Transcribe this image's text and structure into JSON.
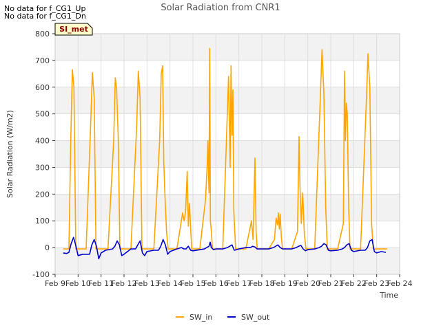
{
  "notes": [
    "No data for f_CG1_Up",
    "No data for f_CG1_Dn"
  ],
  "badge": "SI_met",
  "chart_data": {
    "type": "line",
    "title": "Solar Radiation from CNR1",
    "xlabel": "Time",
    "ylabel": "Solar Radiation (W/m2)",
    "ylim": [
      -100,
      800
    ],
    "yticks": [
      -100,
      0,
      100,
      200,
      300,
      400,
      500,
      600,
      700,
      800
    ],
    "xlim": [
      9,
      24
    ],
    "xticks": [
      {
        "v": 9,
        "label": "Feb 9"
      },
      {
        "v": 10,
        "label": "Feb 10"
      },
      {
        "v": 11,
        "label": "Feb 11"
      },
      {
        "v": 12,
        "label": "Feb 12"
      },
      {
        "v": 13,
        "label": "Feb 13"
      },
      {
        "v": 14,
        "label": "Feb 14"
      },
      {
        "v": 15,
        "label": "Feb 15"
      },
      {
        "v": 16,
        "label": "Feb 16"
      },
      {
        "v": 17,
        "label": "Feb 17"
      },
      {
        "v": 18,
        "label": "Feb 18"
      },
      {
        "v": 19,
        "label": "Feb 19"
      },
      {
        "v": 20,
        "label": "Feb 20"
      },
      {
        "v": 21,
        "label": "Feb 21"
      },
      {
        "v": 22,
        "label": "Feb 22"
      },
      {
        "v": 23,
        "label": "Feb 23"
      },
      {
        "v": 24,
        "label": "Feb 24"
      }
    ],
    "grid": true,
    "legend_position": "bottom-center",
    "series": [
      {
        "name": "SW_in",
        "color": "#FFA500",
        "x": [
          9.35,
          9.6,
          9.68,
          9.75,
          9.82,
          9.9,
          10.05,
          10.35,
          10.55,
          10.62,
          10.7,
          10.78,
          10.85,
          11.05,
          11.3,
          11.55,
          11.62,
          11.68,
          11.75,
          11.82,
          11.88,
          12.05,
          12.3,
          12.55,
          12.62,
          12.7,
          12.78,
          12.85,
          13.05,
          13.3,
          13.55,
          13.62,
          13.68,
          13.73,
          13.78,
          13.85,
          13.92,
          14.05,
          14.3,
          14.55,
          14.62,
          14.68,
          14.75,
          14.8,
          14.85,
          14.9,
          14.95,
          15.05,
          15.3,
          15.55,
          15.62,
          15.65,
          15.7,
          15.73,
          15.76,
          15.8,
          15.85,
          15.9,
          16.05,
          16.3,
          16.55,
          16.62,
          16.66,
          16.7,
          16.74,
          16.78,
          16.82,
          16.86,
          16.9,
          17.05,
          17.3,
          17.55,
          17.62,
          17.7,
          17.75,
          17.8,
          17.85,
          17.9,
          18.05,
          18.3,
          18.55,
          18.62,
          18.68,
          18.72,
          18.76,
          18.8,
          18.85,
          18.9,
          19.05,
          19.3,
          19.55,
          19.62,
          19.66,
          19.72,
          19.78,
          19.85,
          19.92,
          20.05,
          20.3,
          20.55,
          20.62,
          20.7,
          20.78,
          20.85,
          20.92,
          21.05,
          21.3,
          21.55,
          21.6,
          21.64,
          21.68,
          21.72,
          21.78,
          21.84,
          21.9,
          22.05,
          22.3,
          22.55,
          22.62,
          22.7,
          22.78,
          22.85,
          22.92,
          23.05,
          23.3,
          23.45
        ],
        "y": [
          -5,
          -5,
          400,
          665,
          600,
          -5,
          -5,
          -5,
          470,
          655,
          560,
          -5,
          -5,
          -5,
          -5,
          400,
          635,
          590,
          400,
          -5,
          -5,
          -5,
          -5,
          450,
          660,
          560,
          -5,
          -5,
          -5,
          -5,
          400,
          650,
          680,
          320,
          200,
          60,
          -5,
          -5,
          -5,
          130,
          100,
          135,
          285,
          80,
          165,
          70,
          -5,
          -5,
          -5,
          180,
          310,
          400,
          205,
          745,
          100,
          60,
          -5,
          -5,
          -5,
          -5,
          640,
          300,
          680,
          420,
          590,
          140,
          60,
          -5,
          -5,
          -5,
          -5,
          100,
          30,
          335,
          60,
          -5,
          -5,
          -5,
          -5,
          -5,
          30,
          110,
          85,
          130,
          70,
          125,
          40,
          -5,
          -5,
          -5,
          60,
          415,
          230,
          90,
          205,
          50,
          -5,
          -5,
          -5,
          570,
          740,
          580,
          150,
          -5,
          -5,
          -5,
          -5,
          90,
          660,
          400,
          540,
          500,
          150,
          -5,
          -5,
          -5,
          -5,
          550,
          725,
          600,
          90,
          -5,
          -5,
          -5,
          -5,
          -5
        ]
      },
      {
        "name": "SW_out",
        "color": "#0000CD",
        "x": [
          9.35,
          9.5,
          9.6,
          9.7,
          9.8,
          9.9,
          10.0,
          10.2,
          10.5,
          10.6,
          10.7,
          10.8,
          10.9,
          11.0,
          11.2,
          11.5,
          11.6,
          11.7,
          11.8,
          11.9,
          12.0,
          12.3,
          12.5,
          12.6,
          12.7,
          12.8,
          12.9,
          13.0,
          13.3,
          13.5,
          13.6,
          13.7,
          13.8,
          13.9,
          14.0,
          14.3,
          14.5,
          14.6,
          14.7,
          14.8,
          14.9,
          15.0,
          15.3,
          15.5,
          15.6,
          15.7,
          15.75,
          15.8,
          15.9,
          16.0,
          16.3,
          16.5,
          16.6,
          16.7,
          16.8,
          16.9,
          17.0,
          17.3,
          17.5,
          17.6,
          17.7,
          17.8,
          17.9,
          18.0,
          18.3,
          18.5,
          18.6,
          18.7,
          18.8,
          18.9,
          19.0,
          19.3,
          19.5,
          19.6,
          19.7,
          19.8,
          19.9,
          20.0,
          20.3,
          20.5,
          20.6,
          20.7,
          20.8,
          20.9,
          21.0,
          21.3,
          21.5,
          21.6,
          21.7,
          21.8,
          21.9,
          22.0,
          22.3,
          22.5,
          22.6,
          22.7,
          22.8,
          22.9,
          23.0,
          23.2,
          23.4
        ],
        "y": [
          -20,
          -22,
          -18,
          15,
          38,
          8,
          -30,
          -25,
          -25,
          10,
          30,
          5,
          -42,
          -20,
          -10,
          -5,
          5,
          25,
          10,
          -30,
          -25,
          -5,
          -5,
          10,
          25,
          -20,
          -30,
          -15,
          -10,
          -10,
          5,
          30,
          10,
          -25,
          -15,
          -5,
          0,
          -5,
          -5,
          5,
          -10,
          -12,
          -8,
          -5,
          0,
          5,
          20,
          0,
          -8,
          -5,
          -5,
          0,
          5,
          10,
          -10,
          -8,
          -5,
          0,
          0,
          5,
          2,
          -5,
          -5,
          -5,
          -5,
          0,
          5,
          10,
          0,
          -5,
          -5,
          -5,
          0,
          5,
          8,
          -5,
          -12,
          -8,
          -5,
          0,
          5,
          15,
          10,
          -10,
          -12,
          -10,
          -5,
          0,
          10,
          15,
          -10,
          -15,
          -10,
          -10,
          0,
          25,
          30,
          -15,
          -20,
          -15,
          -18
        ]
      }
    ]
  }
}
